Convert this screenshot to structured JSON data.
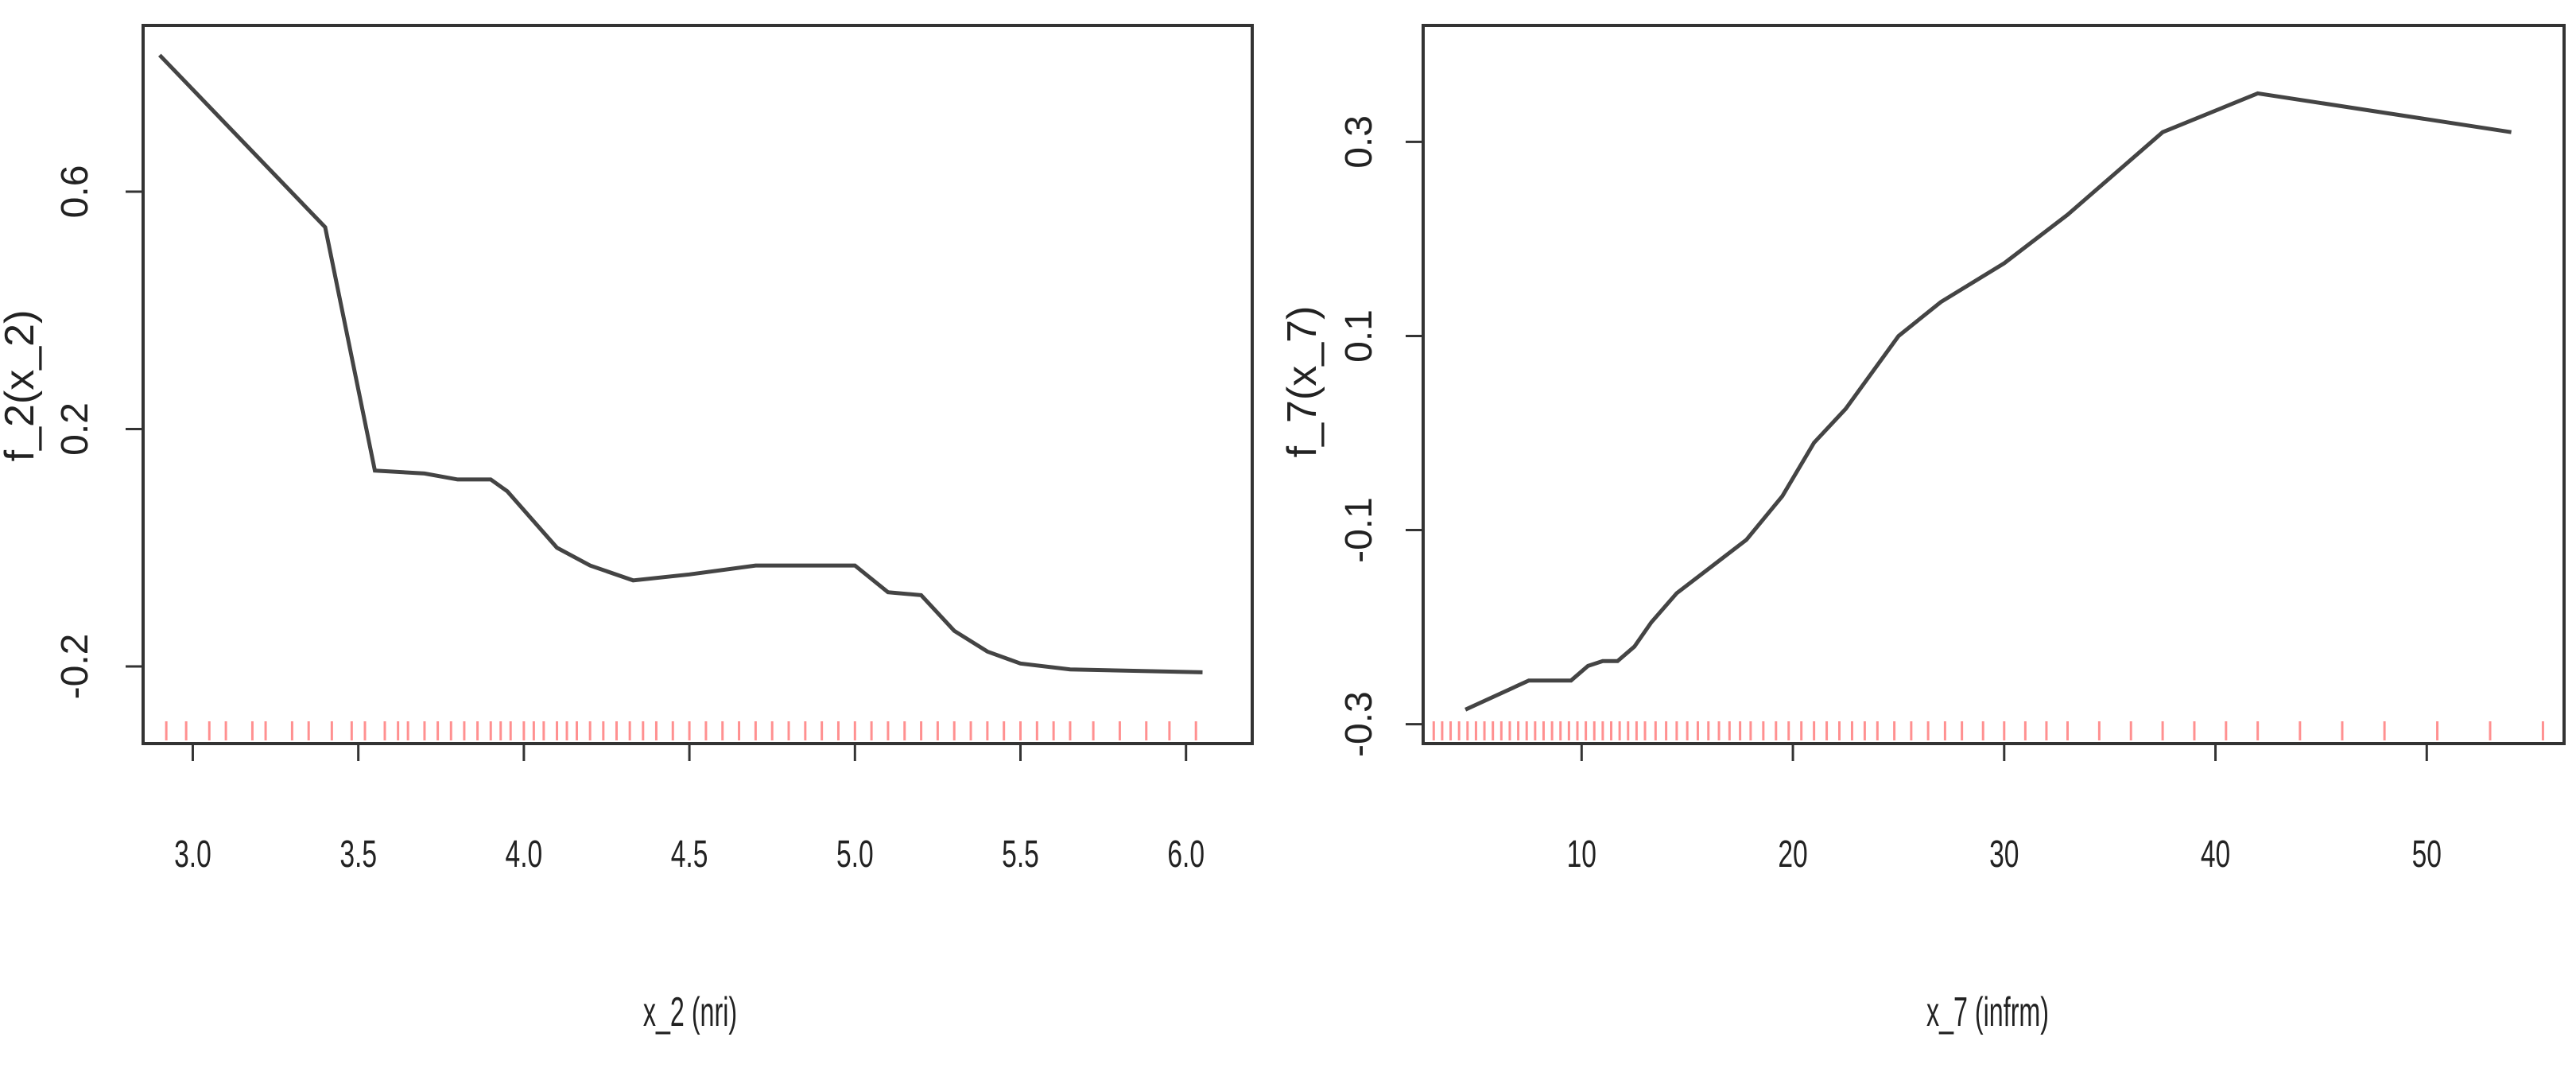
{
  "chart_data": [
    {
      "type": "line",
      "xlabel": "x_2 (nri)",
      "ylabel": "f_2(x_2)",
      "xlim": [
        2.85,
        6.2
      ],
      "ylim": [
        -0.33,
        0.88
      ],
      "xticks": [
        3.0,
        3.5,
        4.0,
        4.5,
        5.0,
        5.5,
        6.0
      ],
      "xtick_labels": [
        "3.0",
        "3.5",
        "4.0",
        "4.5",
        "5.0",
        "5.5",
        "6.0"
      ],
      "yticks": [
        -0.2,
        0.2,
        0.6
      ],
      "ytick_labels": [
        "-0.2",
        "0.2",
        "0.6"
      ],
      "grid": false,
      "line_color": "#444444",
      "rug_color": "#ff6b6b",
      "series": [
        {
          "x": [
            2.9,
            3.4,
            3.55,
            3.7,
            3.8,
            3.9,
            3.95,
            4.1,
            4.2,
            4.33,
            4.5,
            4.7,
            5.0,
            5.1,
            5.2,
            5.3,
            5.4,
            5.5,
            5.65,
            6.05
          ],
          "y": [
            0.83,
            0.54,
            0.13,
            0.125,
            0.115,
            0.115,
            0.095,
            0.0,
            -0.03,
            -0.055,
            -0.045,
            -0.03,
            -0.03,
            -0.075,
            -0.08,
            -0.14,
            -0.175,
            -0.195,
            -0.205,
            -0.21
          ]
        }
      ],
      "rug": [
        2.92,
        2.98,
        3.05,
        3.1,
        3.18,
        3.22,
        3.3,
        3.35,
        3.42,
        3.48,
        3.52,
        3.58,
        3.62,
        3.65,
        3.7,
        3.74,
        3.78,
        3.82,
        3.86,
        3.9,
        3.93,
        3.96,
        4.0,
        4.03,
        4.06,
        4.1,
        4.13,
        4.16,
        4.2,
        4.24,
        4.28,
        4.32,
        4.36,
        4.4,
        4.45,
        4.5,
        4.55,
        4.6,
        4.65,
        4.7,
        4.75,
        4.8,
        4.85,
        4.9,
        4.95,
        5.0,
        5.05,
        5.1,
        5.15,
        5.2,
        5.25,
        5.3,
        5.35,
        5.4,
        5.45,
        5.5,
        5.55,
        5.6,
        5.65,
        5.72,
        5.8,
        5.88,
        5.95,
        6.03
      ]
    },
    {
      "type": "line",
      "xlabel": "x_7 (infrm)",
      "ylabel": "f_7(x_7)",
      "xlim": [
        2.5,
        56.5
      ],
      "ylim": [
        -0.32,
        0.42
      ],
      "xticks": [
        10,
        20,
        30,
        40,
        50
      ],
      "xtick_labels": [
        "10",
        "20",
        "30",
        "40",
        "50"
      ],
      "yticks": [
        -0.3,
        -0.1,
        0.1,
        0.3
      ],
      "ytick_labels": [
        "-0.3",
        "-0.1",
        "0.1",
        "0.3"
      ],
      "grid": false,
      "line_color": "#444444",
      "rug_color": "#ff6b6b",
      "series": [
        {
          "x": [
            4.5,
            7.5,
            9.5,
            10.3,
            11.0,
            11.7,
            12.5,
            13.3,
            14.5,
            16.0,
            17.8,
            19.5,
            21.0,
            22.5,
            25.0,
            27.0,
            30.0,
            33.0,
            37.5,
            42.0,
            54.0
          ],
          "y": [
            -0.285,
            -0.255,
            -0.255,
            -0.24,
            -0.235,
            -0.235,
            -0.22,
            -0.195,
            -0.165,
            -0.14,
            -0.11,
            -0.065,
            -0.01,
            0.025,
            0.1,
            0.135,
            0.175,
            0.225,
            0.31,
            0.35,
            0.31
          ]
        }
      ],
      "rug": [
        3.0,
        3.4,
        3.8,
        4.2,
        4.6,
        5.0,
        5.4,
        5.8,
        6.2,
        6.6,
        7.0,
        7.4,
        7.8,
        8.2,
        8.6,
        9.0,
        9.4,
        9.8,
        10.2,
        10.6,
        11.0,
        11.4,
        11.8,
        12.2,
        12.6,
        13.0,
        13.5,
        14.0,
        14.5,
        15.0,
        15.5,
        16.0,
        16.5,
        17.0,
        17.5,
        18.0,
        18.6,
        19.2,
        19.8,
        20.4,
        21.0,
        21.6,
        22.2,
        22.8,
        23.4,
        24.0,
        24.8,
        25.6,
        26.4,
        27.2,
        28.0,
        29.0,
        30.0,
        31.0,
        32.0,
        33.0,
        34.5,
        36.0,
        37.5,
        39.0,
        40.5,
        42.0,
        44.0,
        46.0,
        48.0,
        50.5,
        53.0,
        55.5
      ]
    }
  ]
}
